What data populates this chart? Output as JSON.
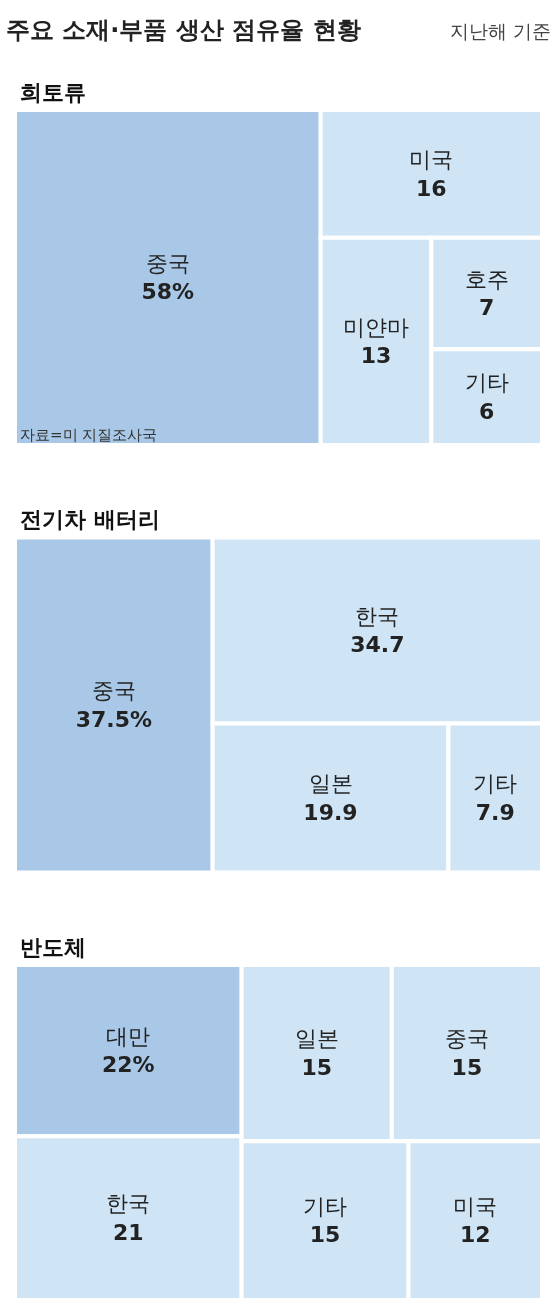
{
  "chart_data": [
    {
      "type": "other",
      "title": "주요 소재·부품 생산 점유율 현황",
      "subtitle": "지난해 기준"
    },
    {
      "type": "other",
      "title": "희토류",
      "categories": [
        "중국",
        "미국",
        "미얀마",
        "호주",
        "기타"
      ],
      "values": [
        58,
        16,
        13,
        7,
        6
      ],
      "value_labels": [
        "58%",
        "16",
        "13",
        "7",
        "6"
      ],
      "colors": [
        "#a9c8e7",
        "#cfe4f4",
        "#cfe4f4",
        "#cfe4f4",
        "#cfe4f4"
      ],
      "annotations": [
        "자료=미 지질조사국"
      ]
    },
    {
      "type": "other",
      "title": "전기차 배터리",
      "categories": [
        "중국",
        "한국",
        "일본",
        "기타"
      ],
      "values": [
        37.5,
        34.7,
        19.9,
        7.9
      ],
      "value_labels": [
        "37.5%",
        "34.7",
        "19.9",
        "7.9"
      ],
      "colors": [
        "#a9c8e7",
        "#cfe4f4",
        "#cfe4f4",
        "#cfe4f4"
      ]
    },
    {
      "type": "other",
      "title": "반도체",
      "categories": [
        "대만",
        "한국",
        "일본",
        "중국",
        "기타",
        "미국"
      ],
      "values": [
        22,
        21,
        15,
        15,
        15,
        12
      ],
      "value_labels": [
        "22%",
        "21",
        "15",
        "15",
        "15",
        "12"
      ],
      "colors": [
        "#a9c8e7",
        "#cfe4f4",
        "#cfe4f4",
        "#cfe4f4",
        "#cfe4f4",
        "#cfe4f4"
      ]
    }
  ]
}
